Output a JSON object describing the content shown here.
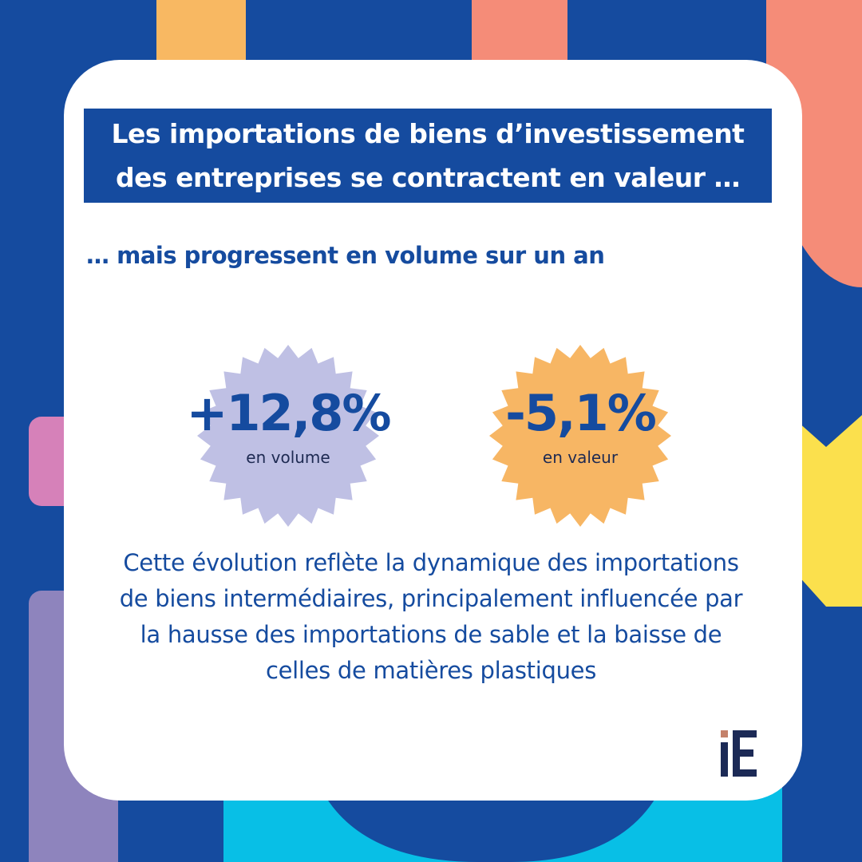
{
  "title": "Les importations de biens d’investissement des entreprises se contractent en valeur …",
  "subtitle": "… mais progressent en volume sur un an",
  "stats": [
    {
      "value": "+12,8%",
      "label": "en volume",
      "color": "#bfc0e4"
    },
    {
      "value": "-5,1%",
      "label": "en valeur",
      "color": "#f7b664"
    }
  ],
  "body": "Cette évolution reflète la dynamique des importations de biens intermédiaires, principalement influencée par la hausse des importations de sable et la baisse de celles de matières plastiques",
  "logo": {
    "icon": "ie-logo-icon",
    "color": "#1c2a56",
    "accent": "#c4816a"
  },
  "colors": {
    "background": "#154b9f",
    "accent_orange": "#f8b862",
    "accent_salmon": "#f58c78",
    "accent_pink": "#d681b9",
    "accent_purple": "#8e84bd",
    "accent_yellow": "#fbe04d",
    "accent_cyan": "#08bfe6"
  }
}
